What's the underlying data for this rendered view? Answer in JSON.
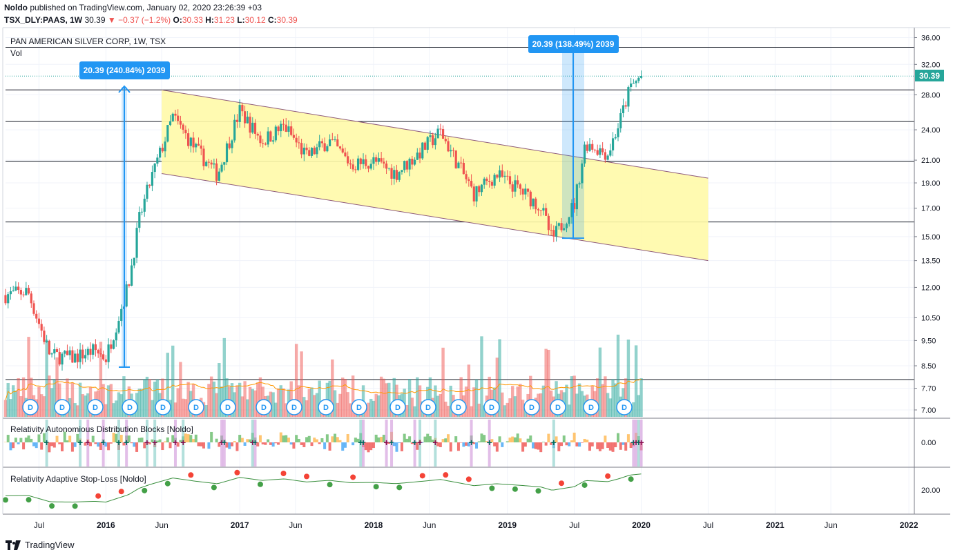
{
  "header": {
    "author": "Noldo",
    "published_text": "published on TradingView.com, January 02, 2020 23:26:39 +03",
    "symbol": "TSX_DLY:PAAS, 1W",
    "price": "30.39",
    "change": "−0.37 (−1.2%)",
    "o_label": "O:",
    "o": "30.33",
    "h_label": "H:",
    "h": "31.23",
    "l_label": "L:",
    "l": "30.12",
    "c_label": "C:",
    "c": "30.39"
  },
  "legend": {
    "title": "PAN AMERICAN SILVER CORP, 1W, TSX",
    "vol": "Vol",
    "indicator1": "Relativity Autonomious Distribution Blocks [Noldo]",
    "indicator2": "Relativity Adaptive Stop-Loss [Noldo]"
  },
  "annotations": {
    "measure1": "20.39 (240.84%) 2039",
    "measure2": "20.39 (138.49%) 2039",
    "last_price": "30.39",
    "dividend_marker": "D"
  },
  "footer": {
    "brand": "TradingView"
  },
  "colors": {
    "up": "#26a69a",
    "down": "#ef5350",
    "channel": "#fff9a8",
    "measure": "#2196f3",
    "ma": "#ff9800"
  },
  "chart_data": {
    "type": "candlestick",
    "scale": "log",
    "x_tick_labels": [
      "Jul",
      "2016",
      "Jun",
      "2017",
      "Jun",
      "2018",
      "Jun",
      "2019",
      "Jul",
      "2020",
      "Jul",
      "2021",
      "Jun",
      "2022"
    ],
    "y_tick_labels": [
      "36.00",
      "32.00",
      "28.00",
      "24.00",
      "21.00",
      "19.00",
      "17.00",
      "15.00",
      "13.50",
      "12.00",
      "10.50",
      "9.50",
      "8.50",
      "7.70",
      "7.00"
    ],
    "indicator1_y_tick": "0.00",
    "indicator2_y_tick": "20.00",
    "horizontal_levels": [
      34.5,
      28.6,
      24.9,
      20.9,
      16.0,
      8.0
    ],
    "price_path": [
      [
        "2015-04",
        11.6
      ],
      [
        "2015-06",
        11.8
      ],
      [
        "2015-08",
        8.9
      ],
      [
        "2015-10",
        8.8
      ],
      [
        "2015-12",
        9.1
      ],
      [
        "2016-01",
        8.8
      ],
      [
        "2016-03",
        12.1
      ],
      [
        "2016-04",
        16.2
      ],
      [
        "2016-05",
        19.2
      ],
      [
        "2016-07",
        25.4
      ],
      [
        "2016-09",
        22.1
      ],
      [
        "2016-11",
        19.7
      ],
      [
        "2017-01",
        26.1
      ],
      [
        "2017-03",
        22.8
      ],
      [
        "2017-05",
        24.4
      ],
      [
        "2017-07",
        21.3
      ],
      [
        "2017-09",
        22.9
      ],
      [
        "2017-11",
        20.6
      ],
      [
        "2018-01",
        20.9
      ],
      [
        "2018-03",
        19.8
      ],
      [
        "2018-05",
        21.6
      ],
      [
        "2018-07",
        23.8
      ],
      [
        "2018-08",
        21.7
      ],
      [
        "2018-10",
        18.1
      ],
      [
        "2018-12",
        19.7
      ],
      [
        "2019-02",
        18.5
      ],
      [
        "2019-04",
        17.1
      ],
      [
        "2019-05",
        14.8
      ],
      [
        "2019-07",
        17.3
      ],
      [
        "2019-08",
        22.7
      ],
      [
        "2019-10",
        21.6
      ],
      [
        "2019-11",
        24.6
      ],
      [
        "2019-12",
        28.9
      ],
      [
        "2020-01",
        30.39
      ]
    ],
    "channel": {
      "upper": [
        [
          "2016-06",
          28.6
        ],
        [
          "2020-07",
          19.4
        ]
      ],
      "lower": [
        [
          "2016-06",
          19.8
        ],
        [
          "2020-07",
          13.5
        ]
      ]
    },
    "dividend_count": 20
  }
}
